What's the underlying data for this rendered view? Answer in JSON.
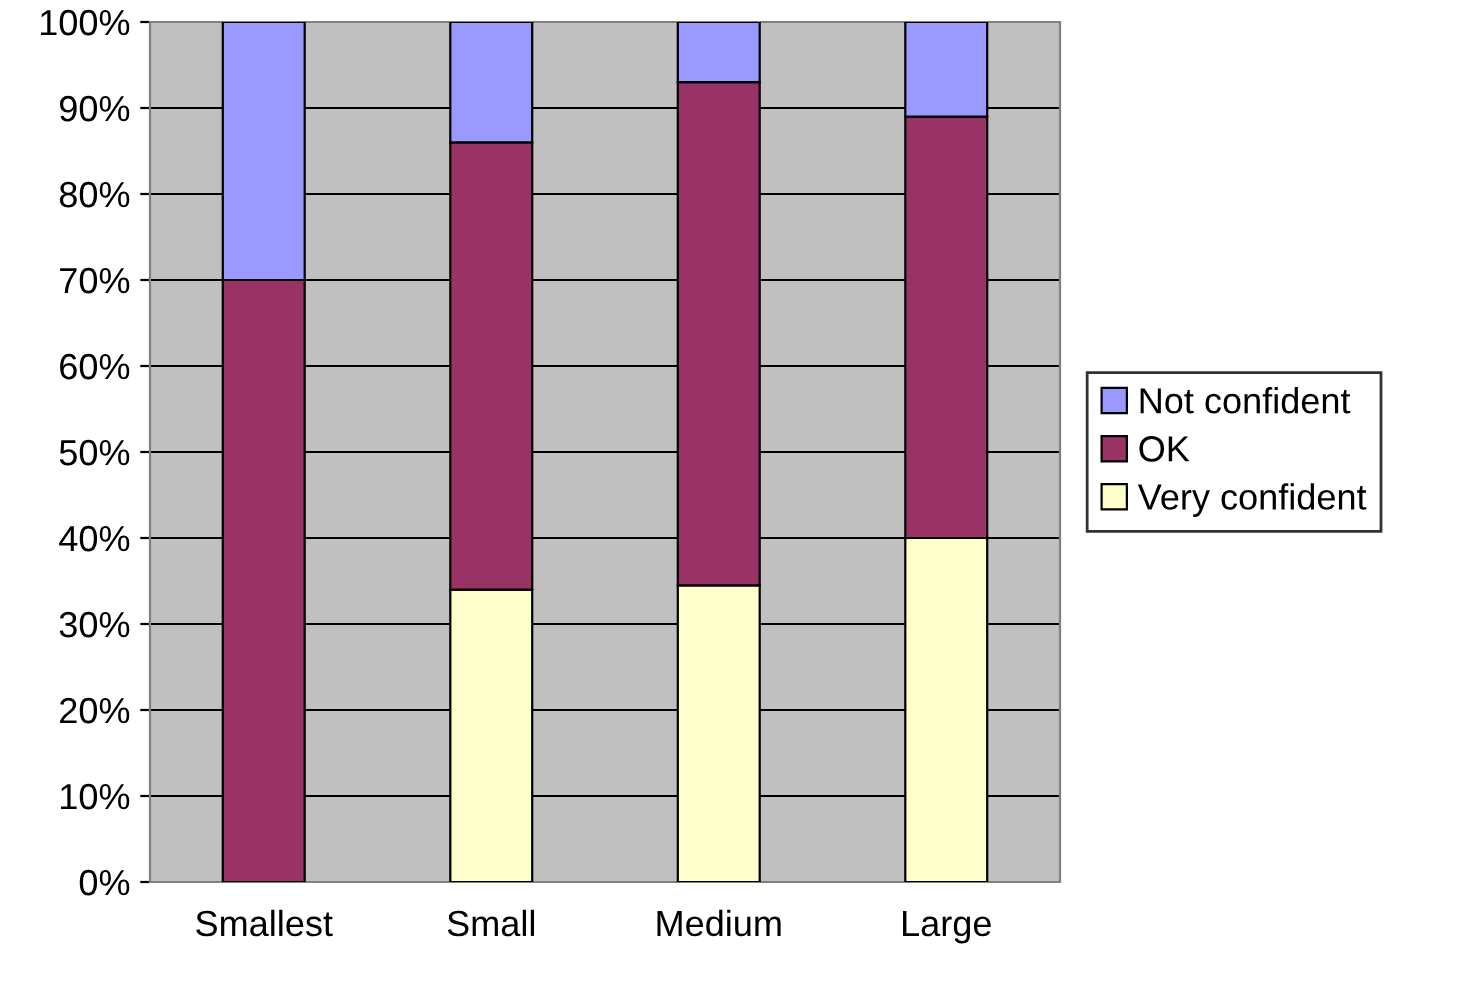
{
  "chart_data": {
    "type": "bar",
    "stacked": true,
    "categories": [
      "Smallest",
      "Small",
      "Medium",
      "Large"
    ],
    "series": [
      {
        "name": "Very confident",
        "color": "#ffffcc",
        "values": [
          0,
          34,
          34.5,
          40
        ]
      },
      {
        "name": "OK",
        "color": "#993366",
        "values": [
          70,
          52,
          58.5,
          49
        ]
      },
      {
        "name": "Not confident",
        "color": "#9999ff",
        "values": [
          30,
          14,
          7,
          11
        ]
      }
    ],
    "ylim": [
      0,
      100
    ],
    "yticks": [
      {
        "value": 0,
        "label": "0%"
      },
      {
        "value": 10,
        "label": "10%"
      },
      {
        "value": 20,
        "label": "20%"
      },
      {
        "value": 30,
        "label": "30%"
      },
      {
        "value": 40,
        "label": "40%"
      },
      {
        "value": 50,
        "label": "50%"
      },
      {
        "value": 60,
        "label": "60%"
      },
      {
        "value": 70,
        "label": "70%"
      },
      {
        "value": 80,
        "label": "80%"
      },
      {
        "value": 90,
        "label": "90%"
      },
      {
        "value": 100,
        "label": "100%"
      }
    ],
    "grid": "y",
    "legend": "right"
  }
}
